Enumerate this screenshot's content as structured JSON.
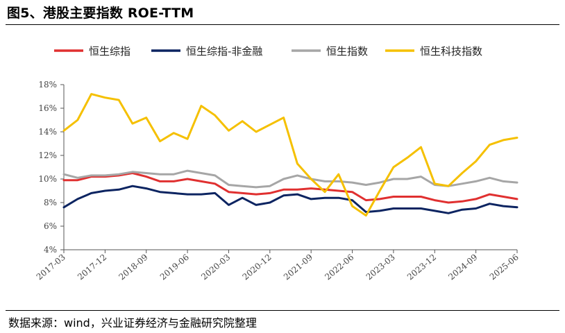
{
  "header": {
    "title": "图5、港股主要指数 ROE-TTM"
  },
  "footer": {
    "source": "数据来源：wind，兴业证券经济与金融研究院整理"
  },
  "chart_data": {
    "type": "line",
    "title": "图5、港股主要指数 ROE-TTM",
    "xlabel": "",
    "ylabel": "",
    "ylim": [
      4,
      18
    ],
    "yticks": [
      4,
      6,
      8,
      10,
      12,
      14,
      16,
      18
    ],
    "ytick_labels": [
      "4%",
      "6%",
      "8%",
      "10%",
      "12%",
      "14%",
      "16%",
      "18%"
    ],
    "y_unit": "%",
    "grid": false,
    "legend_position": "top",
    "x": [
      "2017-03",
      "2017-06",
      "2017-09",
      "2017-12",
      "2018-03",
      "2018-06",
      "2018-09",
      "2018-12",
      "2019-03",
      "2019-06",
      "2019-09",
      "2019-12",
      "2020-03",
      "2020-06",
      "2020-09",
      "2020-12",
      "2021-03",
      "2021-06",
      "2021-09",
      "2021-12",
      "2022-03",
      "2022-06",
      "2022-09",
      "2022-12",
      "2023-03",
      "2023-06",
      "2023-09",
      "2023-12",
      "2024-03",
      "2024-06",
      "2024-09",
      "2024-12",
      "2025-03",
      "2025-06"
    ],
    "xtick_labels": [
      "2017-03",
      "2017-12",
      "2018-09",
      "2019-06",
      "2020-03",
      "2020-12",
      "2021-09",
      "2022-06",
      "2023-03",
      "2023-12",
      "2024-09",
      "2025-06"
    ],
    "series": [
      {
        "name": "恒生综指",
        "color": "#e03030",
        "values": [
          9.9,
          9.9,
          10.2,
          10.2,
          10.3,
          10.5,
          10.2,
          9.8,
          9.8,
          10.0,
          9.8,
          9.6,
          8.9,
          8.8,
          8.7,
          8.8,
          9.1,
          9.1,
          9.2,
          9.1,
          9.0,
          8.9,
          8.2,
          8.3,
          8.5,
          8.5,
          8.5,
          8.2,
          8.0,
          8.1,
          8.3,
          8.7,
          8.5,
          8.3
        ]
      },
      {
        "name": "恒生综指-非金融",
        "color": "#0c2461",
        "values": [
          7.6,
          8.3,
          8.8,
          9.0,
          9.1,
          9.4,
          9.2,
          8.9,
          8.8,
          8.7,
          8.7,
          8.8,
          7.8,
          8.4,
          7.8,
          8.0,
          8.6,
          8.7,
          8.3,
          8.4,
          8.4,
          8.2,
          7.2,
          7.3,
          7.5,
          7.5,
          7.5,
          7.3,
          7.1,
          7.4,
          7.5,
          7.9,
          7.7,
          7.6
        ]
      },
      {
        "name": "恒生指数",
        "color": "#a6a6a6",
        "values": [
          10.4,
          10.1,
          10.3,
          10.3,
          10.4,
          10.6,
          10.5,
          10.4,
          10.4,
          10.7,
          10.5,
          10.3,
          9.5,
          9.4,
          9.3,
          9.4,
          10.0,
          10.3,
          10.0,
          9.8,
          9.8,
          9.7,
          9.5,
          9.7,
          10.0,
          10.0,
          10.2,
          9.5,
          9.4,
          9.6,
          9.8,
          10.1,
          9.8,
          9.7
        ]
      },
      {
        "name": "恒生科技指数",
        "color": "#f5c000",
        "values": [
          14.1,
          15.0,
          17.2,
          16.9,
          16.7,
          14.7,
          15.2,
          13.2,
          13.9,
          13.4,
          16.2,
          15.4,
          14.1,
          14.9,
          14.0,
          14.6,
          15.2,
          11.3,
          10.0,
          8.9,
          10.4,
          7.7,
          6.9,
          9.0,
          11.0,
          11.8,
          12.7,
          9.6,
          9.4,
          10.5,
          11.5,
          12.9,
          13.3,
          13.5
        ]
      }
    ]
  }
}
